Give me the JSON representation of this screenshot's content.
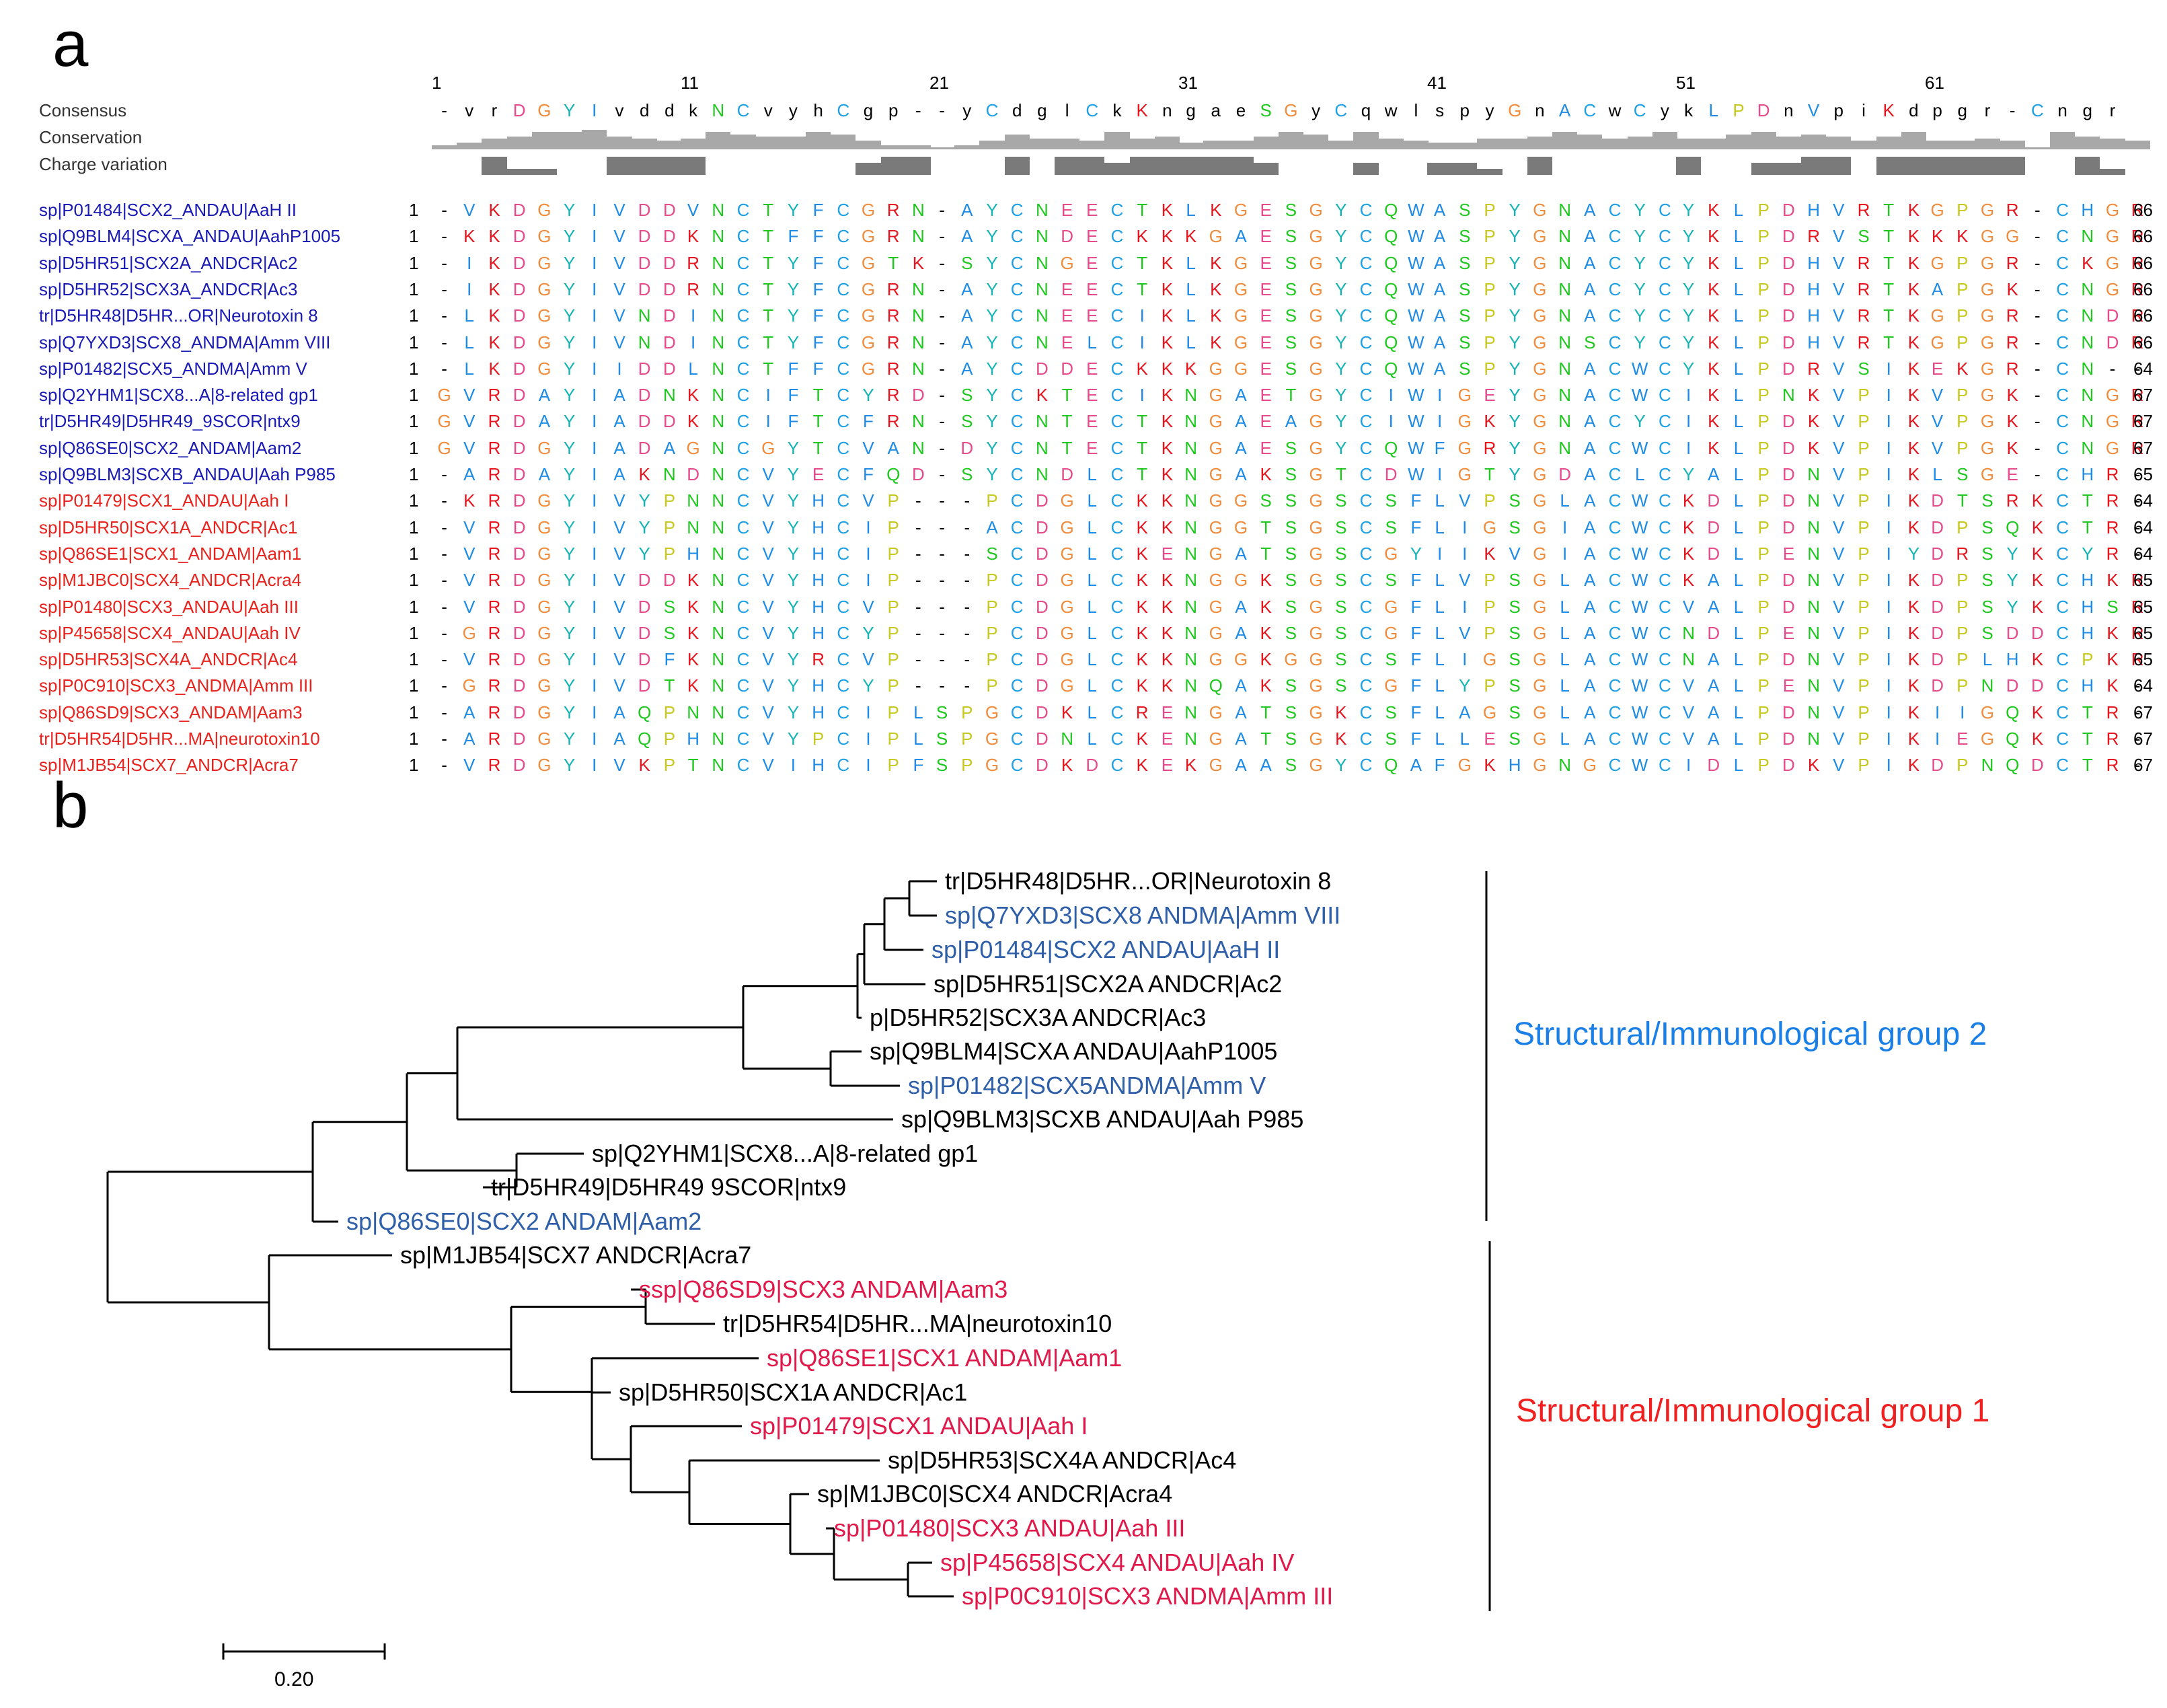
{
  "panel_a": {
    "label": "a",
    "header_labels": [
      "Consensus",
      "Conservation",
      "Charge variation"
    ],
    "position_numbers": [
      "1",
      "11",
      "21",
      "31",
      "41",
      "51",
      "61"
    ],
    "consensus": "-vrDGYIvddkNCvyhCgp--yCdglCkKngaeSGyCqwlspyGnACwCykLPDnVpiKdpgr-Cngr",
    "conservation": [
      2,
      3,
      5,
      6,
      8,
      8,
      9,
      6,
      5,
      4,
      5,
      8,
      7,
      6,
      6,
      8,
      7,
      4,
      2,
      2,
      1,
      2,
      4,
      7,
      5,
      5,
      4,
      8,
      5,
      6,
      3,
      4,
      4,
      6,
      8,
      7,
      4,
      8,
      5,
      4,
      3,
      3,
      5,
      5,
      6,
      8,
      7,
      5,
      6,
      8,
      5,
      5,
      7,
      8,
      6,
      7,
      6,
      4,
      6,
      8,
      4,
      4,
      5,
      4,
      1,
      8,
      6,
      5,
      4
    ],
    "charge": [
      0,
      0,
      3,
      1,
      1,
      0,
      0,
      3,
      3,
      3,
      3,
      0,
      0,
      0,
      0,
      0,
      0,
      2,
      3,
      3,
      0,
      0,
      0,
      3,
      0,
      3,
      3,
      2,
      3,
      3,
      3,
      3,
      3,
      2,
      0,
      0,
      0,
      2,
      0,
      0,
      2,
      2,
      1,
      0,
      3,
      0,
      0,
      0,
      0,
      0,
      3,
      0,
      0,
      2,
      2,
      3,
      3,
      0,
      3,
      3,
      3,
      3,
      3,
      3,
      0,
      0,
      3,
      1,
      0
    ],
    "sequences": [
      {
        "name": "sp|P01484|SCX2_ANDAU|AaH II",
        "group": "blue",
        "start": "1",
        "seq": "-VKDGYIVDDVNCTYFCGRN-AYCNEECTKLKGESGYCQWASPYGNACYCYKLPDHVRTKGPGR-CHGR",
        "end": "66"
      },
      {
        "name": "sp|Q9BLM4|SCXA_ANDAU|AahP1005",
        "group": "blue",
        "start": "1",
        "seq": "-KKDGYIVDDKNCTFFCGRN-AYCNDECKKKGAESGYCQWASPYGNACYCYKLPDRVSTKKKGG-CNGR",
        "end": "66"
      },
      {
        "name": "sp|D5HR51|SCX2A_ANDCR|Ac2",
        "group": "blue",
        "start": "1",
        "seq": "-IKDGYIVDDRNCTYFCGTK-SYCNGECTKLKGESGYCQWASPYGNACYCYKLPDHVRTKGPGR-CKGR",
        "end": "66"
      },
      {
        "name": "sp|D5HR52|SCX3A_ANDCR|Ac3",
        "group": "blue",
        "start": "1",
        "seq": "-IKDGYIVDDRNCTYFCGRN-AYCNEECTKLKGESGYCQWASPYGNACYCYKLPDHVRTKAPGK-CNGR",
        "end": "66"
      },
      {
        "name": "tr|D5HR48|D5HR...OR|Neurotoxin 8",
        "group": "blue",
        "start": "1",
        "seq": "-LKDGYIVNDINCTYFCGRN-AYCNEECIKLKGESGYCQWASPYGNACYCYKLPDHVRTKGPGR-CNDR",
        "end": "66"
      },
      {
        "name": "sp|Q7YXD3|SCX8_ANDMA|Amm VIII",
        "group": "blue",
        "start": "1",
        "seq": "-LKDGYIVNDINCTYFCGRN-AYCNELCIKLKGESGYCQWASPYGNSCYCYKLPDHVRTKGPGR-CNDR",
        "end": "66"
      },
      {
        "name": "sp|P01482|SCX5_ANDMA|Amm V",
        "group": "blue",
        "start": "1",
        "seq": "-LKDGYIIDDLNCTFFCGRN-AYCDDECKKKGGESGYCQWASPYGNACWCYKLPDRVSIKEKGR-CN--",
        "end": "64"
      },
      {
        "name": "sp|Q2YHM1|SCX8...A|8-related gp1",
        "group": "blue",
        "start": "1",
        "seq": "GVRDAYIADNKNCIFTCYRD-SYCKTECIKNGAETGYCIWIGEYGNACWCIKLPNKVPIKVPGK-CNGR",
        "end": "67"
      },
      {
        "name": "tr|D5HR49|D5HR49_9SCOR|ntx9",
        "group": "blue",
        "start": "1",
        "seq": "GVRDAYIADDKNCIFTCFRN-SYCNTECTKNGAEAGYCIWIGKYGNACYCIKLPDKVPIKVPGK-CNGR",
        "end": "67"
      },
      {
        "name": "sp|Q86SE0|SCX2_ANDAM|Aam2",
        "group": "blue",
        "start": "1",
        "seq": "GVRDGYIADAGNCGYTCVAN-DYCNTECTKNGAESGYCQWFGRYGNACWCIKLPDKVPIKVPGK-CNGR",
        "end": "67"
      },
      {
        "name": "sp|Q9BLM3|SCXB_ANDAU|Aah P985",
        "group": "blue",
        "start": "1",
        "seq": "-ARDAYIAKNDNCVYECFQD-SYCNDLCTKNGAKSGTCDWIGTYGDACLCYALPDNVPIKLSGE-CHR-",
        "end": "65"
      },
      {
        "name": "sp|P01479|SCX1_ANDAU|Aah I",
        "group": "red",
        "start": "1",
        "seq": "-KRDGYIVYPNNCVYHCVP---PCDGLCKKNGGSSGSCSFLVPSGLACWCKDLPDNVPIKDTSRKCTR-",
        "end": "64"
      },
      {
        "name": "sp|D5HR50|SCX1A_ANDCR|Ac1",
        "group": "red",
        "start": "1",
        "seq": "-VRDGYIVYPNNCVYHCIP---ACDGLCKKNGGTSGSCSFLIGSGIACWCKDLPDNVPIKDPSQKCTR-",
        "end": "64"
      },
      {
        "name": "sp|Q86SE1|SCX1_ANDAM|Aam1",
        "group": "red",
        "start": "1",
        "seq": "-VRDGYIVYPHNCVYHCIP---SCDGLCKENGATSGSCGYIIKVGIACWCKDLPENVPIYDRSYKCYR-",
        "end": "64"
      },
      {
        "name": "sp|M1JBC0|SCX4_ANDCR|Acra4",
        "group": "red",
        "start": "1",
        "seq": "-VRDGYIVDDKNCVYHCIP---PCDGLCKKNGGKSGSCSFLVPSGLACWCKALPDNVPIKDPSYKCHKR",
        "end": "65"
      },
      {
        "name": "sp|P01480|SCX3_ANDAU|Aah III",
        "group": "red",
        "start": "1",
        "seq": "-VRDGYIVDSKNCVYHCVP---PCDGLCKKNGAKSGSCGFLIPSGLACWCVALPDNVPIKDPSYKCHSR",
        "end": "65"
      },
      {
        "name": "sp|P45658|SCX4_ANDAU|Aah IV",
        "group": "red",
        "start": "1",
        "seq": "-GRDGYIVDSKNCVYHCYP---PCDGLCKKNGAKSGSCGFLVPSGLACWCNDLPENVPIKDPSDDCHKR",
        "end": "65"
      },
      {
        "name": "sp|D5HR53|SCX4A_ANDCR|Ac4",
        "group": "red",
        "start": "1",
        "seq": "-VRDGYIVDFKNCVYRCVP---PCDGLCKKNGGKGGSCSFLIGSGLACWCNALPDNVPIKDPLHKCPKR",
        "end": "65"
      },
      {
        "name": "sp|P0C910|SCX3_ANDMA|Amm III",
        "group": "red",
        "start": "1",
        "seq": "-GRDGYIVDTKNCVYHCYP---PCDGLCKKNQAKSGSCGFLYPSGLACWCVALPENVPIKDPNDDCHK-",
        "end": "64"
      },
      {
        "name": "sp|Q86SD9|SCX3_ANDAM|Aam3",
        "group": "red",
        "start": "1",
        "seq": "-ARDGYIAQPNNCVYHCIPLSPGCDKLCRENGATSGKCSFLAGSGLACWCVALPDNVPIKIIGQKCTR-",
        "end": "67"
      },
      {
        "name": "tr|D5HR54|D5HR...MA|neurotoxin10",
        "group": "red",
        "start": "1",
        "seq": "-ARDGYIAQPHNCVYPCIPLSPGCDNLCKENGATSGKCSFLLESGLACWCVALPDNVPIKIEGQKCTR-",
        "end": "67"
      },
      {
        "name": "sp|M1JB54|SCX7_ANDCR|Acra7",
        "group": "red",
        "start": "1",
        "seq": "-VRDGYIVKPTNCVIHCIPFSPGCDKDCKEKGAASGYCQAFGKHGNGCWCIDLPDKVPIKDPNQDCTR-",
        "end": "67"
      }
    ]
  },
  "panel_b": {
    "label": "b",
    "leaves": [
      {
        "name": "tr|D5HR48|D5HR...OR|Neurotoxin 8",
        "color": "#000000"
      },
      {
        "name": "sp|Q7YXD3|SCX8 ANDMA|Amm VIII",
        "color": "#2e5fa8"
      },
      {
        "name": "sp|P01484|SCX2 ANDAU|AaH II",
        "color": "#2e5fa8"
      },
      {
        "name": "sp|D5HR51|SCX2A ANDCR|Ac2",
        "color": "#000000"
      },
      {
        "name": "p|D5HR52|SCX3A ANDCR|Ac3",
        "color": "#000000"
      },
      {
        "name": "sp|Q9BLM4|SCXA ANDAU|AahP1005",
        "color": "#000000"
      },
      {
        "name": "sp|P01482|SCX5ANDMA|Amm V",
        "color": "#2e5fa8"
      },
      {
        "name": "sp|Q9BLM3|SCXB ANDAU|Aah P985",
        "color": "#000000"
      },
      {
        "name": "sp|Q2YHM1|SCX8...A|8-related gp1",
        "color": "#000000"
      },
      {
        "name": "tr|D5HR49|D5HR49 9SCOR|ntx9",
        "color": "#000000"
      },
      {
        "name": "sp|Q86SE0|SCX2 ANDAM|Aam2",
        "color": "#2e5fa8"
      },
      {
        "name": "sp|M1JB54|SCX7 ANDCR|Acra7",
        "color": "#000000"
      },
      {
        "name": "ssp|Q86SD9|SCX3 ANDAM|Aam3",
        "color": "#e0194a"
      },
      {
        "name": "tr|D5HR54|D5HR...MA|neurotoxin10",
        "color": "#000000"
      },
      {
        "name": "sp|Q86SE1|SCX1 ANDAM|Aam1",
        "color": "#e0194a"
      },
      {
        "name": "sp|D5HR50|SCX1A ANDCR|Ac1",
        "color": "#000000"
      },
      {
        "name": "sp|P01479|SCX1 ANDAU|Aah I",
        "color": "#e0194a"
      },
      {
        "name": "sp|D5HR53|SCX4A ANDCR|Ac4",
        "color": "#000000"
      },
      {
        "name": "sp|M1JBC0|SCX4 ANDCR|Acra4",
        "color": "#000000"
      },
      {
        "name": "sp|P01480|SCX3 ANDAU|Aah III",
        "color": "#e0194a"
      },
      {
        "name": "sp|P45658|SCX4 ANDAU|Aah IV",
        "color": "#e0194a"
      },
      {
        "name": "sp|P0C910|SCX3 ANDMA|Amm III",
        "color": "#e0194a"
      }
    ],
    "group2_label": "Structural/Immunological group 2",
    "group1_label": "Structural/Immunological group 1",
    "group2_color": "#1a7fe6",
    "group1_color": "#f02020",
    "scale_label": "0.20"
  },
  "colors": {
    "name_blue": "#1a1ab4",
    "name_red": "#e8231e",
    "aa": {
      "D": "#e64b8c",
      "E": "#e64b8c",
      "K": "#e6151e",
      "R": "#e6151e",
      "H": "#1e8ce6",
      "N": "#1ec81e",
      "Q": "#1ec81e",
      "S": "#1ec81e",
      "T": "#1ec81e",
      "C": "#1ea0e6",
      "G": "#f08c3c",
      "P": "#c8c81e",
      "A": "#1e8ce6",
      "V": "#1e8ce6",
      "I": "#1e8ce6",
      "L": "#1e8ce6",
      "M": "#1e8ce6",
      "F": "#1e8ce6",
      "W": "#1e8ce6",
      "Y": "#14b4b4"
    }
  }
}
